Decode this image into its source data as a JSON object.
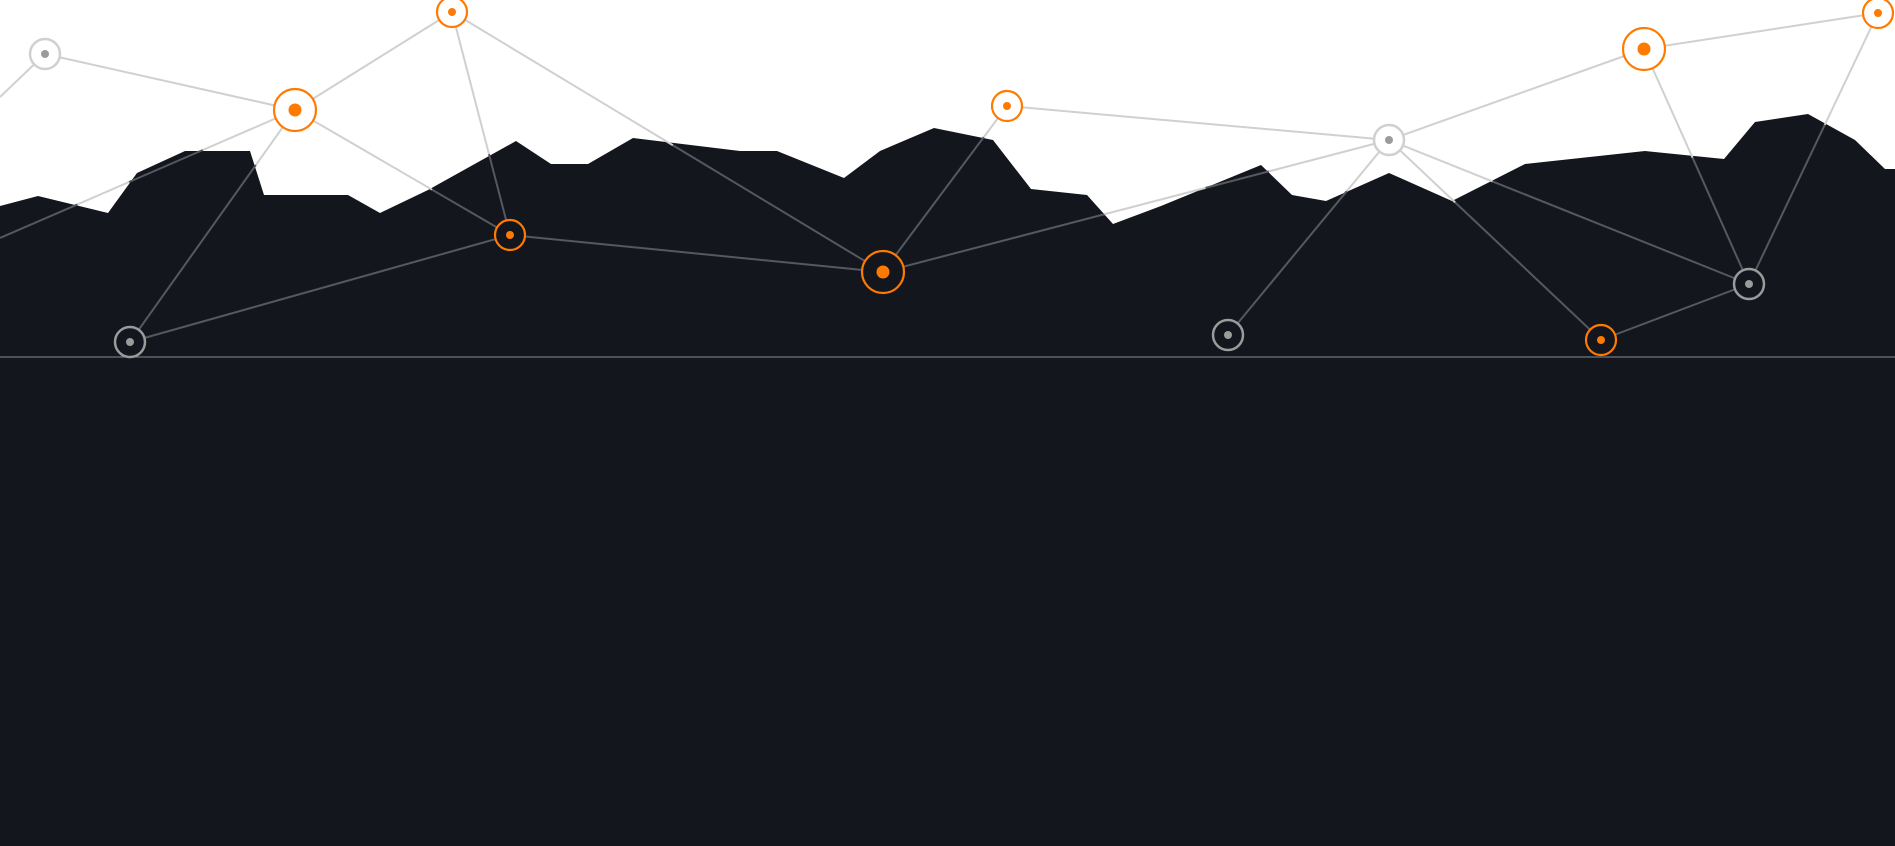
{
  "colors": {
    "background_top": "#ffffff",
    "dark_fill": "#14161e",
    "accent_orange": "#ff7a00",
    "link_light": "#d0d0d0",
    "link_dark": "#56585f",
    "node_gray": "#9b9b9b",
    "horizon_line": "#8a8c92"
  },
  "icons": {
    "network_node": "network-node-icon"
  }
}
